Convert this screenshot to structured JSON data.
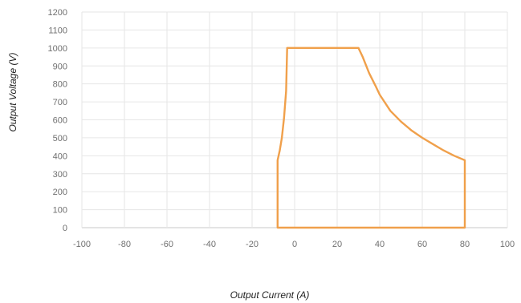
{
  "chart_data": {
    "type": "line",
    "title": "",
    "xlabel": "Output Current (A)",
    "ylabel": "Output Voltage (V)",
    "xlim": [
      -100,
      100
    ],
    "ylim": [
      0,
      1200
    ],
    "x_ticks": [
      "-100",
      "-80",
      "-60",
      "-40",
      "-20",
      "0",
      "20",
      "40",
      "60",
      "80",
      "100"
    ],
    "y_ticks": [
      "0",
      "100",
      "200",
      "300",
      "400",
      "500",
      "600",
      "700",
      "800",
      "900",
      "1000",
      "1100",
      "1200"
    ],
    "grid": "on",
    "legend": "none",
    "series": [
      {
        "color": "#F0A04B",
        "points": [
          [
            -8,
            0
          ],
          [
            -8,
            375
          ],
          [
            -7,
            430
          ],
          [
            -6,
            500
          ],
          [
            -5,
            610
          ],
          [
            -4,
            760
          ],
          [
            -3.5,
            1000
          ],
          [
            30,
            1000
          ],
          [
            32,
            950
          ],
          [
            35,
            860
          ],
          [
            38,
            790
          ],
          [
            40,
            740
          ],
          [
            45,
            650
          ],
          [
            50,
            590
          ],
          [
            55,
            540
          ],
          [
            60,
            500
          ],
          [
            65,
            465
          ],
          [
            70,
            430
          ],
          [
            75,
            400
          ],
          [
            80,
            375
          ],
          [
            80,
            0
          ],
          [
            -8,
            0
          ]
        ]
      }
    ]
  }
}
